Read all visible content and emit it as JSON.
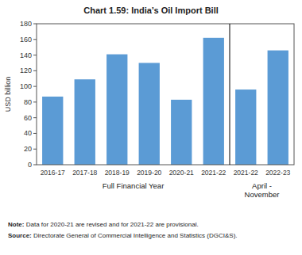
{
  "chart_data": {
    "type": "bar",
    "title": "Chart 1.59: India’s Oil Import Bill",
    "categories": [
      "2016-17",
      "2017-18",
      "2018-19",
      "2019-20",
      "2020-21",
      "2021-22",
      "2021-22",
      "2022-23"
    ],
    "values": [
      87,
      109,
      141,
      130,
      83,
      162,
      96,
      146
    ],
    "color": "#5b9bd5",
    "ylabel": "USD billion",
    "ylim": [
      0,
      180
    ],
    "yticks": [
      0,
      20,
      40,
      60,
      80,
      100,
      120,
      140,
      160,
      180
    ],
    "grid": false,
    "annotations": [
      {
        "text": "Full Financial Year",
        "span": 6
      },
      {
        "text": "April -\nNovember",
        "span": 2
      }
    ],
    "notes": [
      {
        "label": "Note:",
        "text": " Data for 2020-21 are revised and for 2021-22 are provisional."
      },
      {
        "label": "Source:",
        "text": " Directorate General of Commercial Intelligence and Statistics (DGCI&S)."
      }
    ]
  }
}
